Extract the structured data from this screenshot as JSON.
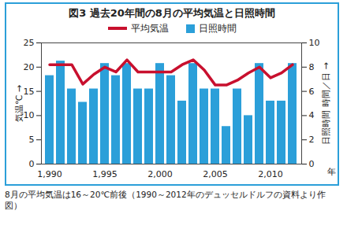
{
  "chart_data": {
    "type": "bar",
    "title": "図3 過去20年間の8月の平均気温と日照時間",
    "x": [
      1990,
      1991,
      1992,
      1993,
      1994,
      1995,
      1996,
      1997,
      1998,
      1999,
      2000,
      2001,
      2002,
      2003,
      2004,
      2005,
      2006,
      2007,
      2008,
      2009,
      2010,
      2011,
      2012
    ],
    "xticks": [
      1990,
      1995,
      2000,
      2005,
      2010
    ],
    "xlabel": "年",
    "ylabel": "気温℃",
    "y2label": "日照時間 時間／日",
    "ylim": [
      0,
      25
    ],
    "yticks": [
      0,
      5,
      10,
      15,
      20,
      25
    ],
    "y2lim": [
      0,
      10
    ],
    "y2ticks": [
      0,
      2,
      4,
      6,
      8,
      10
    ],
    "legend": "top",
    "series": [
      {
        "name": "平均気温",
        "type": "line",
        "color": "#c8102e",
        "values": [
          20.5,
          20.5,
          20.5,
          16.5,
          18.5,
          20,
          19,
          21.5,
          19,
          19,
          19,
          19,
          20.5,
          21.5,
          19.4,
          16.3,
          16.3,
          17.3,
          18.8,
          20,
          17.8,
          18.8,
          20.5
        ]
      },
      {
        "name": "日照時間",
        "type": "bar",
        "color": "#2b9fd9",
        "axis": "y2",
        "values": [
          7.3,
          8.5,
          6.2,
          5.1,
          6.2,
          8.3,
          7.3,
          8.3,
          6.2,
          6.2,
          8.3,
          7.3,
          5.2,
          8.3,
          6.2,
          6.2,
          3.1,
          6.2,
          4.0,
          8.3,
          5.2,
          5.2,
          8.3
        ]
      }
    ],
    "caption": "8月の平均気温は16～20℃前後（1990～2012年のデュッセルドルフの資料より作図）"
  }
}
